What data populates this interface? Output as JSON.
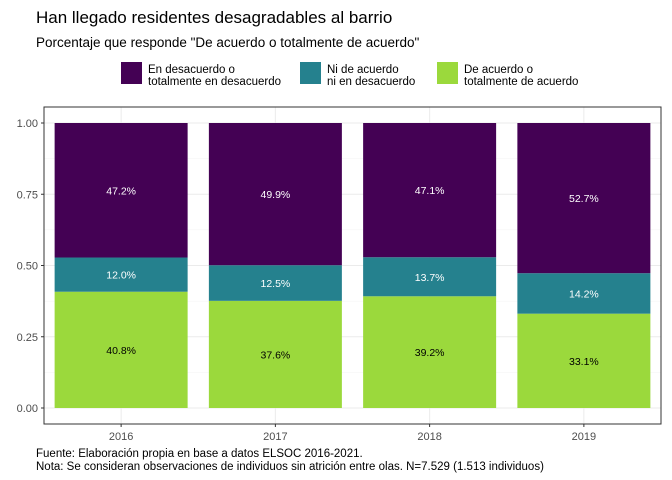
{
  "chart_data": {
    "type": "bar",
    "stacked": true,
    "title": "Han llegado residentes desagradables al barrio",
    "subtitle": "Porcentaje que responde \"De acuerdo o totalmente de acuerdo\"",
    "categories": [
      "2016",
      "2017",
      "2018",
      "2019"
    ],
    "ylim": [
      0,
      1
    ],
    "yticks": [
      "0.00",
      "0.25",
      "0.50",
      "0.75",
      "1.00"
    ],
    "ytick_values": [
      0,
      0.25,
      0.5,
      0.75,
      1
    ],
    "grid": true,
    "legend_position": "top",
    "series": [
      {
        "name_lines": [
          "De acuerdo o",
          "totalmente de acuerdo"
        ],
        "color": "#9bd93c",
        "values": [
          0.408,
          0.376,
          0.392,
          0.331
        ],
        "labels": [
          "40.8%",
          "37.6%",
          "39.2%",
          "33.1%"
        ],
        "label_color": "#000000"
      },
      {
        "name_lines": [
          "Ni de acuerdo",
          "ni en desacuerdo"
        ],
        "color": "#25818e",
        "values": [
          0.12,
          0.125,
          0.137,
          0.142
        ],
        "labels": [
          "12.0%",
          "12.5%",
          "13.7%",
          "14.2%"
        ],
        "label_color": "#ffffff"
      },
      {
        "name_lines": [
          "En desacuerdo o",
          "totalmente en desacuerdo"
        ],
        "color": "#440154",
        "values": [
          0.472,
          0.499,
          0.471,
          0.527
        ],
        "labels": [
          "47.2%",
          "49.9%",
          "47.1%",
          "52.7%"
        ],
        "label_color": "#ffffff"
      }
    ],
    "legend_order": [
      2,
      1,
      0
    ],
    "caption_lines": [
      "Fuente: Elaboración propia en base a datos ELSOC 2016-2021.",
      "Nota: Se consideran observaciones de individuos sin atrición entre olas. N=7.529 (1.513 individuos)"
    ]
  }
}
